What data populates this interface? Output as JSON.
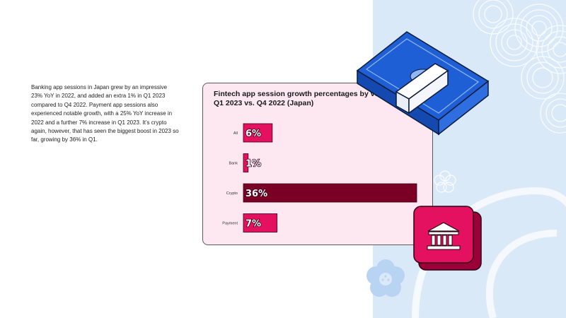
{
  "body_text": "Banking app sessions in Japan grew by an impressive 23% YoY in 2022, and added an extra 1% in Q1 2023 compared to Q4 2022. Payment app sessions also experienced notable growth, with a 25% YoY increase in 2022 and a further 7% increase in Q1 2023. It’s crypto again, however, that has seen the biggest boost in 2023 so far, growing by 36% in Q1.",
  "colors": {
    "bar_default": "#e3115f",
    "bar_highlight": "#7a0026",
    "card_bg": "#fde8f1",
    "panel_bg": "#d9e9f8",
    "bank_icon": "#e3115f",
    "money": "#1f5fd6"
  },
  "icons": [
    "money-stack-icon",
    "bank-icon",
    "flower-icon"
  ],
  "chart_data": {
    "type": "bar",
    "orientation": "horizontal",
    "title": "Fintech app session growth percentages by vertical",
    "subtitle": "Q1 2023 vs. Q4 2022 (Japan)",
    "categories": [
      "All",
      "Bank",
      "Crypto",
      "Payment"
    ],
    "values": [
      6,
      1,
      36,
      7
    ],
    "value_labels": [
      "6%",
      "1%",
      "36%",
      "7%"
    ],
    "highlight": "Crypto",
    "xlim": [
      0,
      36
    ],
    "grid": false,
    "legend": "none"
  }
}
